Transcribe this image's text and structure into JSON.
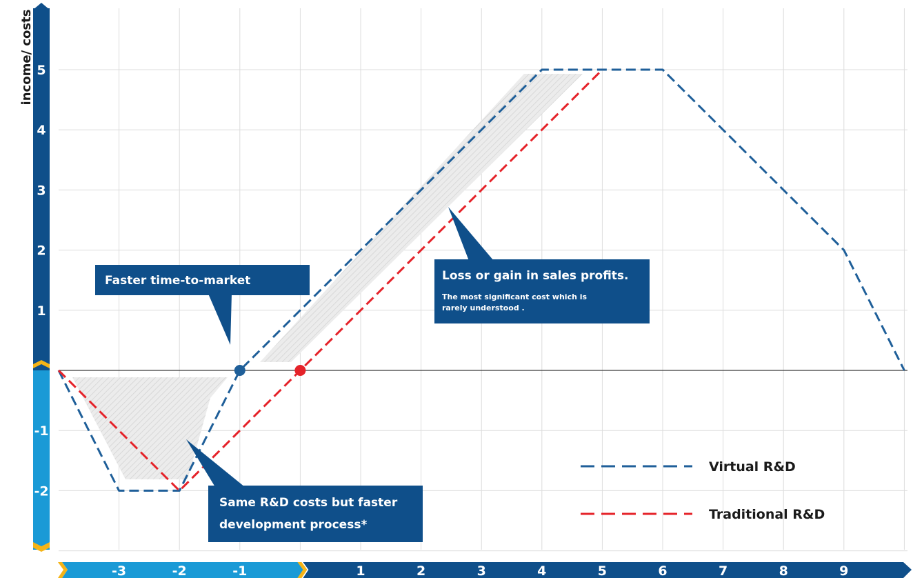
{
  "colors": {
    "axis_dark": "#0f4f8a",
    "axis_light": "#1a9ad6",
    "axis_chevron": "#f5b417",
    "virtual": "#1f5f99",
    "traditional": "#e5232a",
    "callout": "#0f4f8a",
    "grid": "#dcdcdc",
    "shade": "#e6e6e6"
  },
  "chart_data": {
    "type": "line",
    "title": "",
    "ylabel": "income/ costs",
    "xlabel": "",
    "x_ticks": [
      -3,
      -2,
      -1,
      1,
      2,
      3,
      4,
      5,
      6,
      7,
      8,
      9
    ],
    "y_ticks": [
      -2,
      -1,
      1,
      2,
      3,
      4,
      5
    ],
    "grid": true,
    "series": [
      {
        "name": "Virtual R&D",
        "style": "dashed",
        "points": [
          [
            -4,
            0
          ],
          [
            -3,
            -2
          ],
          [
            -2,
            -2
          ],
          [
            -1,
            0
          ],
          [
            4,
            5
          ],
          [
            6,
            5
          ],
          [
            9,
            2
          ],
          [
            10,
            0
          ]
        ]
      },
      {
        "name": "Traditional R&D",
        "style": "dashed",
        "points": [
          [
            -4,
            0
          ],
          [
            -2,
            -2
          ],
          [
            0,
            0
          ],
          [
            5,
            5
          ]
        ]
      }
    ],
    "markers": [
      {
        "series": "Virtual R&D",
        "x": -1,
        "y": 0
      },
      {
        "series": "Traditional R&D",
        "x": 0,
        "y": 0
      }
    ],
    "annotations": [
      {
        "id": "faster",
        "title": "Faster time-to-market"
      },
      {
        "id": "loss",
        "title": "Loss or gain in sales profits.",
        "subtitle_lines": [
          "The most significant cost which is",
          "rarely  understood ."
        ]
      },
      {
        "id": "same",
        "title_lines": [
          "Same R&D costs but faster",
          "development process*"
        ]
      }
    ],
    "legend": {
      "placement": "bottom-right",
      "entries": [
        "Virtual R&D",
        "Traditional R&D"
      ]
    }
  }
}
